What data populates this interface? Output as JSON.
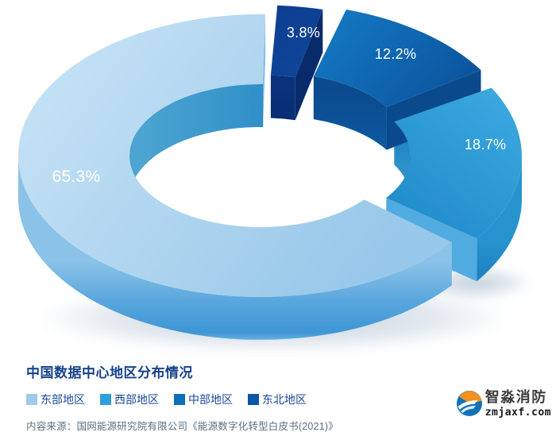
{
  "chart_data": {
    "type": "pie",
    "subtype": "3d-exploded-donut",
    "title": "中国数据中心地区分布情况",
    "unit": "%",
    "legend_position": "bottom",
    "start_angle_deg": 2,
    "clockwise_from_top_order": [
      "东北地区",
      "中部地区",
      "西部地区",
      "东部地区"
    ],
    "slices": [
      {
        "name": "东部地区",
        "value": 65.3,
        "label": "65.3%",
        "color": "#9FCBE9",
        "colors_3d": {
          "top": [
            "#C9E4F6",
            "#97C7E9"
          ],
          "side": [
            "#8AC2E8",
            "#57A5DC",
            "#3E96D5",
            "#7FC0EC"
          ],
          "inner": [
            "#4BA4D1",
            "#137ABD"
          ],
          "cut": "#6FB2DF"
        }
      },
      {
        "name": "西部地区",
        "value": 18.7,
        "label": "18.7%",
        "color": "#2E9FD9",
        "colors_3d": {
          "top": [
            "#3CA9E0",
            "#1B86C6"
          ],
          "side": [
            "#2794D0",
            "#176FB2",
            "#49A4D9"
          ],
          "inner": [
            "#0E6DB0",
            "#3BA0D5"
          ],
          "cut": "#4FABE0"
        }
      },
      {
        "name": "中部地区",
        "value": 12.2,
        "label": "12.2%",
        "color": "#0D6FB8",
        "colors_3d": {
          "top": [
            "#1478C2",
            "#0C55A0"
          ],
          "inner": [
            "#0B4A8E",
            "#0E60AA"
          ],
          "cut": "#0A4A8C"
        }
      },
      {
        "name": "东北地区",
        "value": 3.8,
        "label": "3.8%",
        "color": "#0C55A7",
        "colors_3d": {
          "top": [
            "#0D3E90",
            "#10479D"
          ],
          "inner": [
            "#0B3480",
            "#0A2C70"
          ],
          "cut": "#092B6B"
        }
      }
    ]
  },
  "footer": {
    "source": "内容来源：国网能源研究院有限公司《能源数字化转型白皮书(2021)》"
  },
  "watermark": {
    "brand": "智淼消防",
    "domain": "zmjaxf.com",
    "colors": {
      "orange": "#F6921E",
      "blue": "#1272B8"
    }
  }
}
